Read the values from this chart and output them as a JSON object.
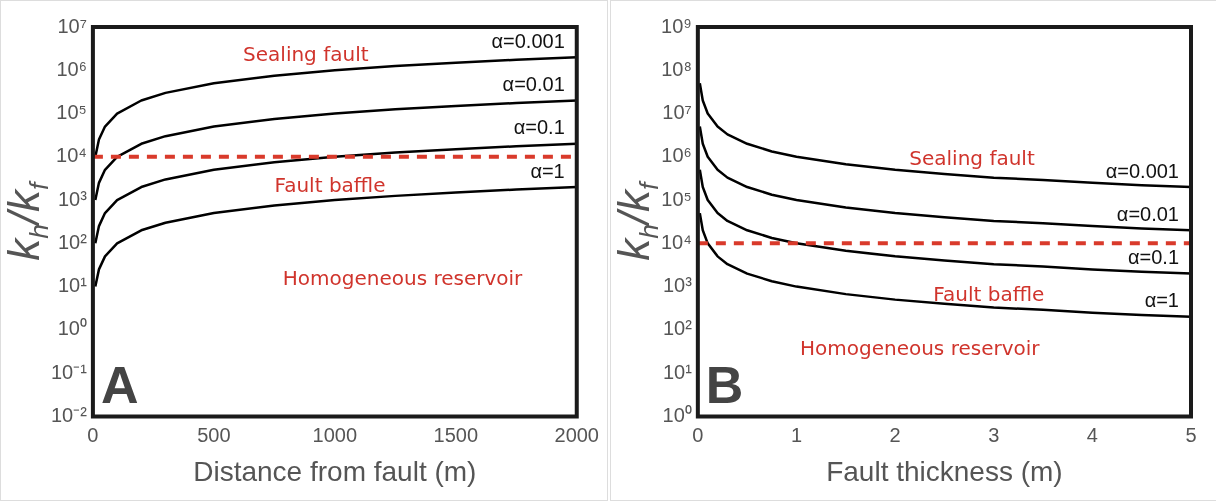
{
  "chart_data": [
    {
      "type": "line",
      "xlabel": "Distance from fault (m)",
      "ylabel": "k$_{h}$/k$_{f}$",
      "log": "y",
      "grid": false,
      "legend": false,
      "marker": "none",
      "line_style": "solid",
      "x": [
        10,
        25,
        50,
        100,
        200,
        300,
        500,
        750,
        1000,
        1250,
        1500,
        1750,
        2000
      ],
      "series": [
        {
          "name": "α=0.001",
          "color": "#000000",
          "values": [
            10000,
            25000,
            50000,
            100000,
            200000,
            300000,
            500000,
            750000,
            1000000,
            1250000,
            1500000,
            1750000,
            2000000
          ]
        },
        {
          "name": "α=0.01",
          "color": "#000000",
          "values": [
            1000,
            2500,
            5000,
            10000,
            20000,
            30000,
            50000,
            75000,
            100000,
            125000,
            150000,
            175000,
            200000
          ]
        },
        {
          "name": "α=0.1",
          "color": "#000000",
          "values": [
            100,
            250,
            500,
            1000,
            2000,
            3000,
            5000,
            7500,
            10000,
            12500,
            15000,
            17500,
            20000
          ]
        },
        {
          "name": "α=1",
          "color": "#000000",
          "values": [
            10,
            25,
            50,
            100,
            200,
            300,
            500,
            750,
            1000,
            1250,
            1500,
            1750,
            2000
          ]
        }
      ],
      "xlim": [
        0,
        2000
      ],
      "xticks": [
        0,
        500,
        1000,
        1500,
        2000
      ],
      "ylim": [
        0.01,
        10000000
      ],
      "yticks": [
        {
          "value": 0.01,
          "label": "10⁻²"
        },
        {
          "value": 0.1,
          "label": "10⁻¹"
        },
        {
          "value": 1,
          "label": "10⁰"
        },
        {
          "value": 10,
          "label": "10¹"
        },
        {
          "value": 100,
          "label": "10²"
        },
        {
          "value": 1000,
          "label": "10³"
        },
        {
          "value": 10000,
          "label": "10⁴"
        },
        {
          "value": 100000,
          "label": "10⁵"
        },
        {
          "value": 1000000,
          "label": "10⁶"
        },
        {
          "value": 10000000,
          "label": "10⁷"
        }
      ],
      "ref_lines": [
        {
          "axis": "y",
          "value": 10000,
          "color": "#d93a2b",
          "line_style": "dashed"
        }
      ],
      "annotations": [
        "Sealing fault",
        "Fault baffle",
        "Homogeneous reservoir",
        "A"
      ]
    },
    {
      "type": "line",
      "xlabel": "Fault thickness (m)",
      "ylabel": "k$_{h}$/k$_{f}$",
      "log": "y",
      "grid": false,
      "legend": false,
      "marker": "none",
      "line_style": "solid",
      "x": [
        0.02,
        0.05,
        0.1,
        0.2,
        0.3,
        0.5,
        0.75,
        1,
        1.5,
        2,
        2.5,
        3,
        3.5,
        4,
        4.5,
        5
      ],
      "series": [
        {
          "name": "α=0.001",
          "color": "#000000",
          "values": [
            50000000,
            20000000,
            10000000,
            5000000,
            3300000,
            2000000,
            1330000,
            1000000,
            670000,
            500000,
            400000,
            330000,
            290000,
            250000,
            220000,
            200000
          ]
        },
        {
          "name": "α=0.01",
          "color": "#000000",
          "values": [
            5000000,
            2000000,
            1000000,
            500000,
            330000,
            200000,
            133000,
            100000,
            67000,
            50000,
            40000,
            33000,
            29000,
            25000,
            22000,
            20000
          ]
        },
        {
          "name": "α=0.1",
          "color": "#000000",
          "values": [
            500000,
            200000,
            100000,
            50000,
            33000,
            20000,
            13300,
            10000,
            6700,
            5000,
            4000,
            3300,
            2900,
            2500,
            2200,
            2000
          ]
        },
        {
          "name": "α=1",
          "color": "#000000",
          "values": [
            50000,
            20000,
            10000,
            5000,
            3300,
            2000,
            1330,
            1000,
            670,
            500,
            400,
            330,
            290,
            250,
            220,
            200
          ]
        }
      ],
      "xlim": [
        0,
        5
      ],
      "xticks": [
        0,
        1,
        2,
        3,
        4,
        5
      ],
      "ylim": [
        1,
        1000000000
      ],
      "yticks": [
        {
          "value": 1,
          "label": "10⁰"
        },
        {
          "value": 10,
          "label": "10¹"
        },
        {
          "value": 100,
          "label": "10²"
        },
        {
          "value": 1000,
          "label": "10³"
        },
        {
          "value": 10000,
          "label": "10⁴"
        },
        {
          "value": 100000,
          "label": "10⁵"
        },
        {
          "value": 1000000,
          "label": "10⁶"
        },
        {
          "value": 10000000,
          "label": "10⁷"
        },
        {
          "value": 100000000,
          "label": "10⁸"
        },
        {
          "value": 1000000000,
          "label": "10⁹"
        }
      ],
      "ref_lines": [
        {
          "axis": "y",
          "value": 10000,
          "color": "#d93a2b",
          "line_style": "dashed"
        }
      ],
      "annotations": [
        "Sealing fault",
        "Fault baffle",
        "Homogeneous reservoir",
        "B"
      ]
    }
  ]
}
